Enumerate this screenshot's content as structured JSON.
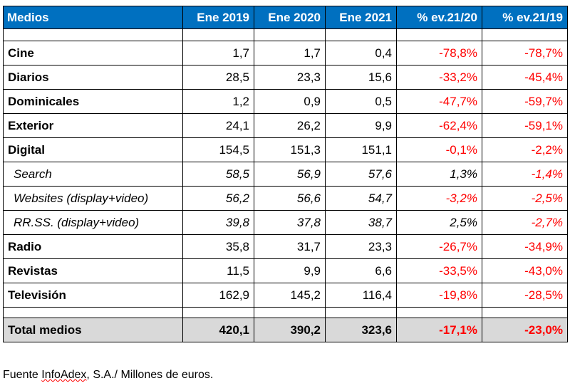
{
  "chart_data": {
    "type": "table",
    "columns": [
      "Medios",
      "Ene 2019",
      "Ene 2020",
      "Ene 2021",
      "% ev.21/20",
      "% ev.21/19"
    ],
    "rows": [
      {
        "medio": "Cine",
        "sub": false,
        "v2019": "1,7",
        "v2020": "1,7",
        "v2021": "0,4",
        "ev2120": "-78,8%",
        "ev2119": "-78,7%"
      },
      {
        "medio": "Diarios",
        "sub": false,
        "v2019": "28,5",
        "v2020": "23,3",
        "v2021": "15,6",
        "ev2120": "-33,2%",
        "ev2119": "-45,4%"
      },
      {
        "medio": "Dominicales",
        "sub": false,
        "v2019": "1,2",
        "v2020": "0,9",
        "v2021": "0,5",
        "ev2120": "-47,7%",
        "ev2119": "-59,7%"
      },
      {
        "medio": "Exterior",
        "sub": false,
        "v2019": "24,1",
        "v2020": "26,2",
        "v2021": "9,9",
        "ev2120": "-62,4%",
        "ev2119": "-59,1%"
      },
      {
        "medio": "Digital",
        "sub": false,
        "v2019": "154,5",
        "v2020": "151,3",
        "v2021": "151,1",
        "ev2120": "-0,1%",
        "ev2119": "-2,2%"
      },
      {
        "medio": "Search",
        "sub": true,
        "v2019": "58,5",
        "v2020": "56,9",
        "v2021": "57,6",
        "ev2120": "1,3%",
        "ev2119": "-1,4%"
      },
      {
        "medio": "Websites (display+video)",
        "sub": true,
        "v2019": "56,2",
        "v2020": "56,6",
        "v2021": "54,7",
        "ev2120": "-3,2%",
        "ev2119": "-2,5%"
      },
      {
        "medio": "RR.SS. (display+video)",
        "sub": true,
        "v2019": "39,8",
        "v2020": "37,8",
        "v2021": "38,7",
        "ev2120": "2,5%",
        "ev2119": "-2,7%"
      },
      {
        "medio": "Radio",
        "sub": false,
        "v2019": "35,8",
        "v2020": "31,7",
        "v2021": "23,3",
        "ev2120": "-26,7%",
        "ev2119": "-34,9%"
      },
      {
        "medio": "Revistas",
        "sub": false,
        "v2019": "11,5",
        "v2020": "9,9",
        "v2021": "6,6",
        "ev2120": "-33,5%",
        "ev2119": "-43,0%"
      },
      {
        "medio": "Televisión",
        "sub": false,
        "v2019": "162,9",
        "v2020": "145,2",
        "v2021": "116,4",
        "ev2120": "-19,8%",
        "ev2119": "-28,5%"
      }
    ],
    "total": {
      "medio": "Total medios",
      "v2019": "420,1",
      "v2020": "390,2",
      "v2021": "323,6",
      "ev2120": "-17,1%",
      "ev2119": "-23,0%"
    },
    "colors": {
      "header_bg": "#0070c0",
      "header_text": "#ffffff",
      "negative": "#ff0000",
      "total_bg": "#d9d9d9"
    }
  },
  "source": {
    "prefix": "Fuente ",
    "org": "InfoAdex",
    "suffix": ", S.A./ Millones de euros."
  }
}
